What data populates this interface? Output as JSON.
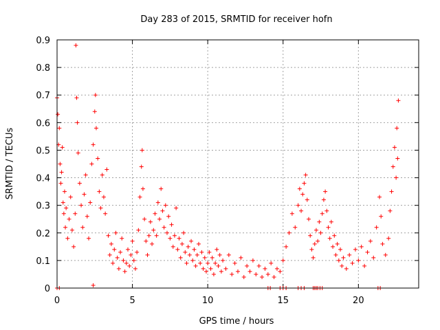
{
  "chart_data": {
    "type": "scatter",
    "title": "Day 283 of 2015, SRMTID for receiver hofn",
    "xlabel": "GPS time / hours",
    "ylabel": "SRMTID / TECUs",
    "xlim": [
      0,
      24
    ],
    "ylim": [
      0,
      0.9
    ],
    "xticks": [
      0,
      5,
      10,
      15,
      20
    ],
    "yticks": [
      0,
      0.1,
      0.2,
      0.3,
      0.4,
      0.5,
      0.6,
      0.7,
      0.8,
      0.9
    ],
    "xtick_labels": [
      "0",
      "5",
      "10",
      "15",
      "20"
    ],
    "ytick_labels": [
      "0",
      "0.1",
      "0.2",
      "0.3",
      "0.4",
      "0.5",
      "0.6",
      "0.7",
      "0.8",
      "0.9"
    ],
    "grid": true,
    "marker": "+",
    "color": "#ff0000",
    "series": [
      {
        "name": "SRMTID",
        "points": [
          [
            0.0,
            0.69
          ],
          [
            0.05,
            0.63
          ],
          [
            0.1,
            0.52
          ],
          [
            0.15,
            0.58
          ],
          [
            0.2,
            0.45
          ],
          [
            0.25,
            0.38
          ],
          [
            0.3,
            0.42
          ],
          [
            0.35,
            0.51
          ],
          [
            0.4,
            0.31
          ],
          [
            0.45,
            0.27
          ],
          [
            0.5,
            0.35
          ],
          [
            0.55,
            0.22
          ],
          [
            0.6,
            0.29
          ],
          [
            0.7,
            0.18
          ],
          [
            0.8,
            0.25
          ],
          [
            0.9,
            0.33
          ],
          [
            1.0,
            0.21
          ],
          [
            1.1,
            0.15
          ],
          [
            1.2,
            0.27
          ],
          [
            1.25,
            0.88
          ],
          [
            1.3,
            0.69
          ],
          [
            1.35,
            0.6
          ],
          [
            1.4,
            0.49
          ],
          [
            1.5,
            0.38
          ],
          [
            1.6,
            0.3
          ],
          [
            1.7,
            0.22
          ],
          [
            1.8,
            0.34
          ],
          [
            1.9,
            0.41
          ],
          [
            2.0,
            0.26
          ],
          [
            2.1,
            0.18
          ],
          [
            2.2,
            0.31
          ],
          [
            2.3,
            0.45
          ],
          [
            2.4,
            0.52
          ],
          [
            2.5,
            0.64
          ],
          [
            2.55,
            0.7
          ],
          [
            2.6,
            0.58
          ],
          [
            2.7,
            0.47
          ],
          [
            2.8,
            0.35
          ],
          [
            2.9,
            0.29
          ],
          [
            3.0,
            0.41
          ],
          [
            3.1,
            0.33
          ],
          [
            3.2,
            0.27
          ],
          [
            3.3,
            0.43
          ],
          [
            3.4,
            0.19
          ],
          [
            3.5,
            0.12
          ],
          [
            3.6,
            0.16
          ],
          [
            3.7,
            0.09
          ],
          [
            3.8,
            0.14
          ],
          [
            3.9,
            0.2
          ],
          [
            4.0,
            0.11
          ],
          [
            4.1,
            0.07
          ],
          [
            4.2,
            0.13
          ],
          [
            4.3,
            0.18
          ],
          [
            4.4,
            0.1
          ],
          [
            4.5,
            0.06
          ],
          [
            4.6,
            0.09
          ],
          [
            4.7,
            0.14
          ],
          [
            4.8,
            0.08
          ],
          [
            4.9,
            0.12
          ],
          [
            5.0,
            0.17
          ],
          [
            5.1,
            0.1
          ],
          [
            5.2,
            0.07
          ],
          [
            5.3,
            0.13
          ],
          [
            5.4,
            0.21
          ],
          [
            5.5,
            0.33
          ],
          [
            5.6,
            0.44
          ],
          [
            5.65,
            0.5
          ],
          [
            5.7,
            0.36
          ],
          [
            5.8,
            0.25
          ],
          [
            5.9,
            0.17
          ],
          [
            6.0,
            0.12
          ],
          [
            6.1,
            0.19
          ],
          [
            6.2,
            0.24
          ],
          [
            6.3,
            0.16
          ],
          [
            6.4,
            0.21
          ],
          [
            6.5,
            0.27
          ],
          [
            6.6,
            0.19
          ],
          [
            6.7,
            0.31
          ],
          [
            6.8,
            0.25
          ],
          [
            6.9,
            0.36
          ],
          [
            7.0,
            0.28
          ],
          [
            7.1,
            0.22
          ],
          [
            7.2,
            0.3
          ],
          [
            7.3,
            0.2
          ],
          [
            7.4,
            0.26
          ],
          [
            7.5,
            0.18
          ],
          [
            7.6,
            0.23
          ],
          [
            7.7,
            0.15
          ],
          [
            7.8,
            0.19
          ],
          [
            7.9,
            0.29
          ],
          [
            8.0,
            0.14
          ],
          [
            8.1,
            0.18
          ],
          [
            8.2,
            0.11
          ],
          [
            8.3,
            0.16
          ],
          [
            8.4,
            0.2
          ],
          [
            8.5,
            0.13
          ],
          [
            8.6,
            0.09
          ],
          [
            8.7,
            0.15
          ],
          [
            8.8,
            0.12
          ],
          [
            8.9,
            0.17
          ],
          [
            9.0,
            0.1
          ],
          [
            9.1,
            0.14
          ],
          [
            9.2,
            0.08
          ],
          [
            9.3,
            0.12
          ],
          [
            9.4,
            0.16
          ],
          [
            9.5,
            0.09
          ],
          [
            9.6,
            0.13
          ],
          [
            9.7,
            0.07
          ],
          [
            9.8,
            0.11
          ],
          [
            9.9,
            0.06
          ],
          [
            10.0,
            0.09
          ],
          [
            10.1,
            0.13
          ],
          [
            10.2,
            0.07
          ],
          [
            10.3,
            0.11
          ],
          [
            10.4,
            0.05
          ],
          [
            10.5,
            0.09
          ],
          [
            10.6,
            0.14
          ],
          [
            10.7,
            0.08
          ],
          [
            10.8,
            0.12
          ],
          [
            10.9,
            0.06
          ],
          [
            11.0,
            0.1
          ],
          [
            11.2,
            0.07
          ],
          [
            11.4,
            0.12
          ],
          [
            11.6,
            0.05
          ],
          [
            11.8,
            0.09
          ],
          [
            12.0,
            0.06
          ],
          [
            12.2,
            0.11
          ],
          [
            12.4,
            0.04
          ],
          [
            12.6,
            0.08
          ],
          [
            12.8,
            0.06
          ],
          [
            13.0,
            0.1
          ],
          [
            13.2,
            0.05
          ],
          [
            13.4,
            0.08
          ],
          [
            13.6,
            0.04
          ],
          [
            13.8,
            0.07
          ],
          [
            14.0,
            0.05
          ],
          [
            14.2,
            0.09
          ],
          [
            14.4,
            0.04
          ],
          [
            14.6,
            0.07
          ],
          [
            14.8,
            0.06
          ],
          [
            15.0,
            0.1
          ],
          [
            15.2,
            0.15
          ],
          [
            15.4,
            0.2
          ],
          [
            15.6,
            0.27
          ],
          [
            15.8,
            0.22
          ],
          [
            16.0,
            0.3
          ],
          [
            16.1,
            0.36
          ],
          [
            16.2,
            0.28
          ],
          [
            16.3,
            0.34
          ],
          [
            16.4,
            0.38
          ],
          [
            16.5,
            0.41
          ],
          [
            16.6,
            0.32
          ],
          [
            16.7,
            0.25
          ],
          [
            16.8,
            0.19
          ],
          [
            16.9,
            0.14
          ],
          [
            17.0,
            0.11
          ],
          [
            17.1,
            0.16
          ],
          [
            17.2,
            0.21
          ],
          [
            17.3,
            0.17
          ],
          [
            17.4,
            0.24
          ],
          [
            17.5,
            0.2
          ],
          [
            17.6,
            0.27
          ],
          [
            17.7,
            0.32
          ],
          [
            17.8,
            0.35
          ],
          [
            17.9,
            0.28
          ],
          [
            18.0,
            0.22
          ],
          [
            18.1,
            0.18
          ],
          [
            18.2,
            0.24
          ],
          [
            18.3,
            0.15
          ],
          [
            18.4,
            0.19
          ],
          [
            18.5,
            0.12
          ],
          [
            18.6,
            0.16
          ],
          [
            18.7,
            0.1
          ],
          [
            18.8,
            0.14
          ],
          [
            18.9,
            0.08
          ],
          [
            19.0,
            0.11
          ],
          [
            19.2,
            0.07
          ],
          [
            19.4,
            0.12
          ],
          [
            19.6,
            0.09
          ],
          [
            19.8,
            0.14
          ],
          [
            20.0,
            0.1
          ],
          [
            20.2,
            0.15
          ],
          [
            20.4,
            0.08
          ],
          [
            20.6,
            0.13
          ],
          [
            20.8,
            0.17
          ],
          [
            21.0,
            0.11
          ],
          [
            21.2,
            0.22
          ],
          [
            21.4,
            0.33
          ],
          [
            21.5,
            0.26
          ],
          [
            21.6,
            0.16
          ],
          [
            21.8,
            0.12
          ],
          [
            22.0,
            0.18
          ],
          [
            22.1,
            0.28
          ],
          [
            22.2,
            0.35
          ],
          [
            22.3,
            0.44
          ],
          [
            22.4,
            0.51
          ],
          [
            22.5,
            0.4
          ],
          [
            22.55,
            0.58
          ],
          [
            22.6,
            0.47
          ],
          [
            22.65,
            0.68
          ],
          [
            0.0,
            0.0
          ],
          [
            0.15,
            0.0
          ],
          [
            2.4,
            0.01
          ],
          [
            14.0,
            0.0
          ],
          [
            14.15,
            0.0
          ],
          [
            14.8,
            0.0
          ],
          [
            15.0,
            0.0
          ],
          [
            15.2,
            0.0
          ],
          [
            16.0,
            0.0
          ],
          [
            16.2,
            0.0
          ],
          [
            16.4,
            0.0
          ],
          [
            17.0,
            0.0
          ],
          [
            17.1,
            0.0
          ],
          [
            17.2,
            0.0
          ],
          [
            17.3,
            0.0
          ],
          [
            17.45,
            0.0
          ],
          [
            17.6,
            0.0
          ],
          [
            21.3,
            0.0
          ],
          [
            21.45,
            0.0
          ]
        ]
      }
    ]
  }
}
